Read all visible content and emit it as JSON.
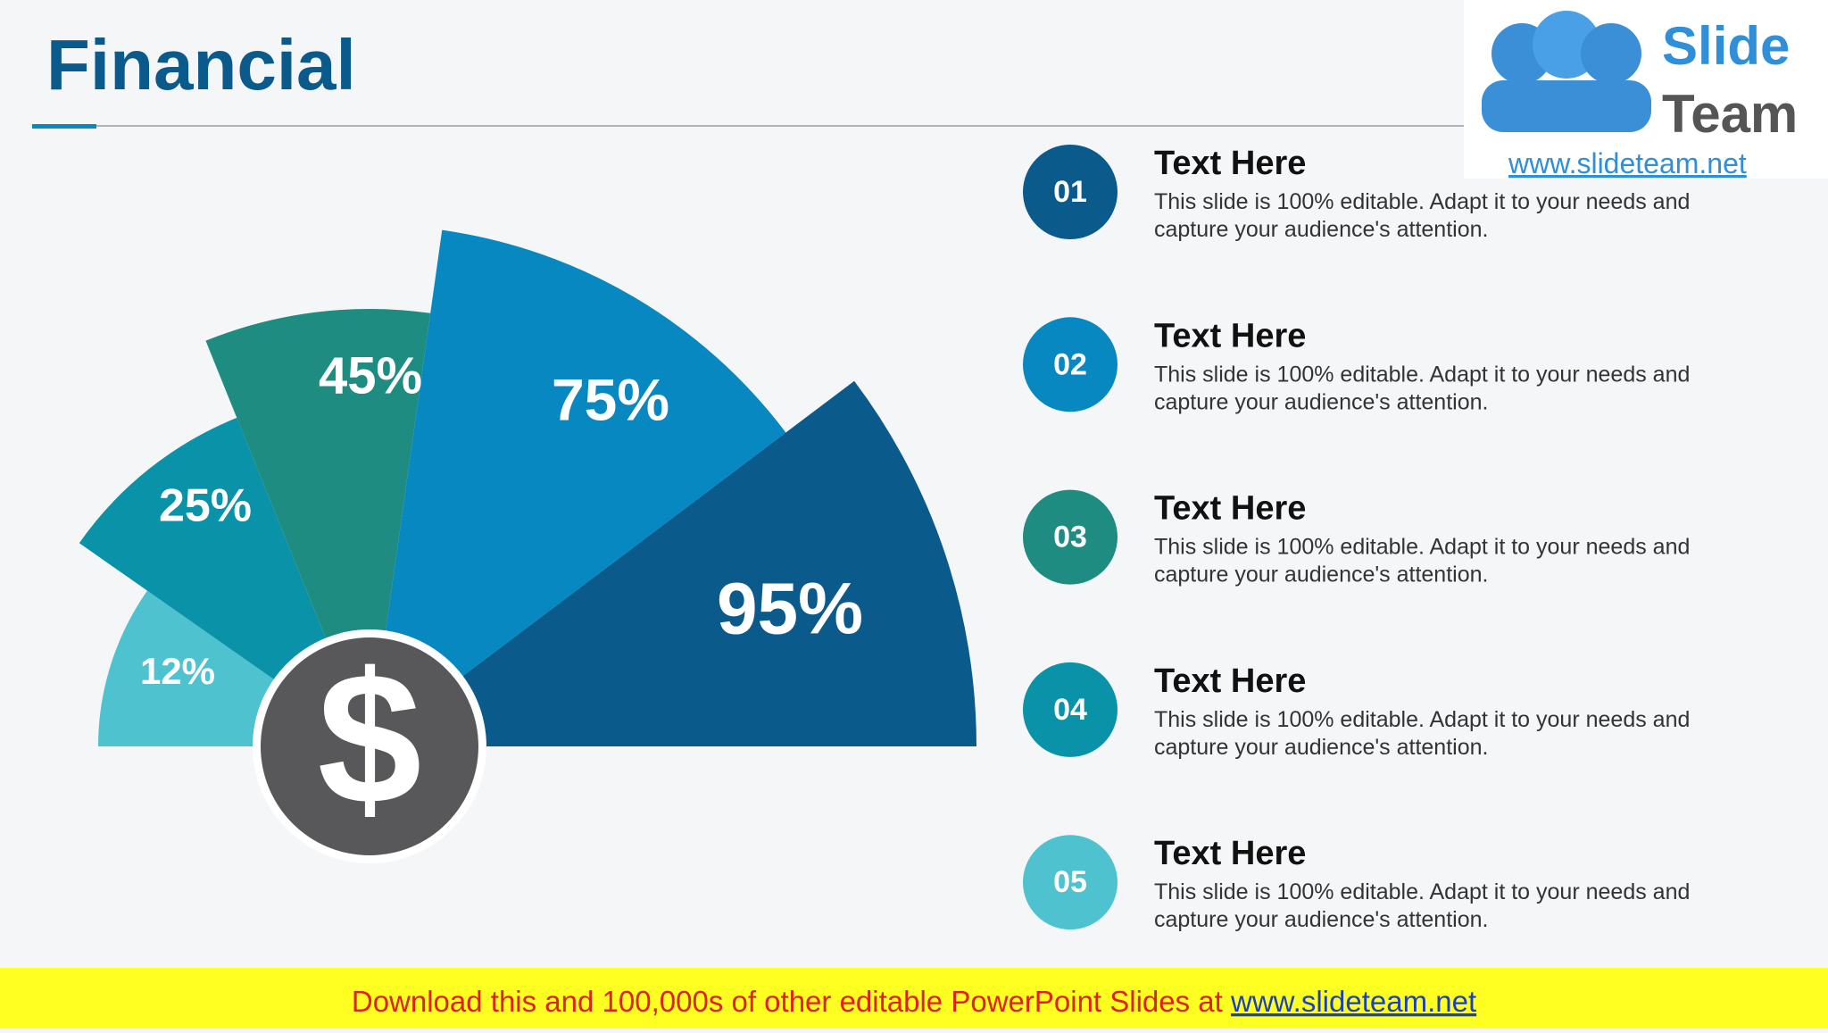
{
  "header": {
    "title": "Financial"
  },
  "logo": {
    "word1": "Slide",
    "word2": "Team",
    "url": "www.slideteam.net"
  },
  "fan": {
    "segments": [
      {
        "label": "12%",
        "color": "#4ec3cf"
      },
      {
        "label": "25%",
        "color": "#0a93a8"
      },
      {
        "label": "45%",
        "color": "#1e8c80"
      },
      {
        "label": "75%",
        "color": "#0788c0"
      },
      {
        "label": "95%",
        "color": "#0b5a8c"
      }
    ],
    "icon": "$"
  },
  "items": [
    {
      "number": "01",
      "heading": "Text Here",
      "body": [
        "This slide is 100% editable. Adapt it to your needs and",
        "capture your audience's attention."
      ],
      "color": "#0b5a8c"
    },
    {
      "number": "02",
      "heading": "Text Here",
      "body": [
        "This slide is 100% editable. Adapt it to your needs and",
        "capture your audience's attention."
      ],
      "color": "#0788c0"
    },
    {
      "number": "03",
      "heading": "Text Here",
      "body": [
        "This slide is 100% editable. Adapt it to your needs and",
        "capture your audience's attention."
      ],
      "color": "#1e8c80"
    },
    {
      "number": "04",
      "heading": "Text Here",
      "body": [
        "This slide is 100% editable. Adapt it to your needs and",
        "capture your audience's attention."
      ],
      "color": "#0a93a8"
    },
    {
      "number": "05",
      "heading": "Text Here",
      "body": [
        "This slide is 100% editable. Adapt it to your needs and",
        "capture your audience's attention."
      ],
      "color": "#4ec3cf"
    }
  ],
  "footer": {
    "text": "Download this and 100,000s of other editable PowerPoint Slides at ",
    "link": "www.slideteam.net"
  }
}
